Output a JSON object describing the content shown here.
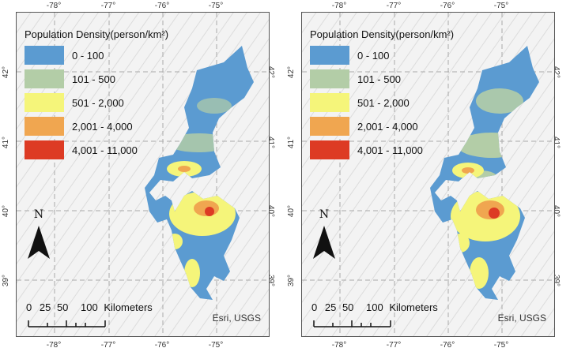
{
  "panels": [
    {
      "id": "left",
      "legend": {
        "title": "Population Density(person/km²)",
        "classes": [
          {
            "label": "0 - 100",
            "color": "#5b9bd1"
          },
          {
            "label": "101 - 500",
            "color": "#b3cda7"
          },
          {
            "label": "501 - 2,000",
            "color": "#f5f57a"
          },
          {
            "label": "2,001 - 4,000",
            "color": "#f0a650"
          },
          {
            "label": "4,001 - 11,000",
            "color": "#dd3b24"
          }
        ]
      },
      "north_label": "N",
      "scale": {
        "ticks": [
          "0",
          "25",
          "50",
          "100"
        ],
        "unit": "Kilometers"
      },
      "credit": "Esri, USGS",
      "lon_ticks": [
        "-78°",
        "-77°",
        "-76°",
        "-75°"
      ],
      "lat_ticks": [
        "42°",
        "41°",
        "40°",
        "39°"
      ]
    },
    {
      "id": "right",
      "legend": {
        "title": "Population Density(person/km²)",
        "classes": [
          {
            "label": "0 - 100",
            "color": "#5b9bd1"
          },
          {
            "label": "101 - 500",
            "color": "#b3cda7"
          },
          {
            "label": "501 - 2,000",
            "color": "#f5f57a"
          },
          {
            "label": "2,001 - 4,000",
            "color": "#f0a650"
          },
          {
            "label": "4,001 - 11,000",
            "color": "#dd3b24"
          }
        ]
      },
      "north_label": "N",
      "scale": {
        "ticks": [
          "0",
          "25",
          "50",
          "100"
        ],
        "unit": "Kilometers"
      },
      "credit": "Esri, USGS",
      "lon_ticks": [
        "-78°",
        "-77°",
        "-76°",
        "-75°"
      ],
      "lat_ticks": [
        "42°",
        "41°",
        "40°",
        "39°"
      ]
    }
  ]
}
